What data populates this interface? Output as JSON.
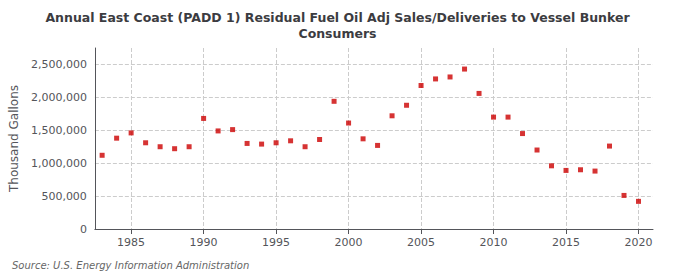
{
  "chart_data": {
    "type": "scatter",
    "title": "Annual East Coast (PADD 1) Residual Fuel Oil Adj Sales/Deliveries to Vessel Bunker\nConsumers",
    "ylabel": "Thousand Gallons",
    "source": "Source: U.S. Energy Information Administration",
    "x": [
      1983,
      1984,
      1985,
      1986,
      1987,
      1988,
      1989,
      1990,
      1991,
      1992,
      1993,
      1994,
      1995,
      1996,
      1997,
      1998,
      1999,
      2000,
      2001,
      2002,
      2003,
      2004,
      2005,
      2006,
      2007,
      2008,
      2009,
      2010,
      2011,
      2012,
      2013,
      2014,
      2015,
      2016,
      2017,
      2018,
      2019,
      2020
    ],
    "values": [
      1120000,
      1380000,
      1460000,
      1310000,
      1250000,
      1220000,
      1250000,
      1680000,
      1490000,
      1510000,
      1300000,
      1290000,
      1310000,
      1340000,
      1250000,
      1360000,
      1940000,
      1610000,
      1370000,
      1270000,
      1720000,
      1880000,
      2180000,
      2280000,
      2310000,
      2430000,
      2060000,
      1700000,
      1700000,
      1450000,
      1200000,
      960000,
      890000,
      900000,
      880000,
      1260000,
      510000,
      420000
    ],
    "color": "#cc0000",
    "marker": "square",
    "xlim": [
      1982.5,
      2021
    ],
    "xticks": [
      1985,
      1990,
      1995,
      2000,
      2005,
      2010,
      2015,
      2020
    ],
    "ylim": [
      0,
      2750000
    ],
    "yticks": [
      0,
      {
        "value": 500000,
        "label": "500,000"
      },
      {
        "value": 1000000,
        "label": "1,000,000"
      },
      {
        "value": 1500000,
        "label": "1,500,000"
      },
      {
        "value": 2000000,
        "label": "2,000,000"
      },
      {
        "value": 2500000,
        "label": "2,500,000"
      }
    ],
    "grid": true
  }
}
